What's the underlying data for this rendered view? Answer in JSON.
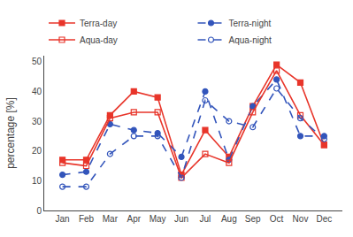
{
  "chart_data": {
    "type": "line",
    "categories": [
      "Jan",
      "Feb",
      "Mar",
      "Apr",
      "May",
      "Jun",
      "Jul",
      "Aug",
      "Sep",
      "Oct",
      "Nov",
      "Dec"
    ],
    "series": [
      {
        "name": "Terra-day",
        "color": "#e8352a",
        "marker": "square",
        "line_style": "solid",
        "values": [
          17,
          17,
          32,
          40,
          38,
          12,
          27,
          18,
          35,
          49,
          43,
          22
        ]
      },
      {
        "name": "Terra-night",
        "color": "#3355bb",
        "marker": "circle",
        "line_style": "dashed",
        "values": [
          12,
          13,
          29,
          27,
          26,
          18,
          40,
          17,
          35,
          44,
          25,
          25
        ]
      },
      {
        "name": "Aqua-day",
        "color": "#e8352a",
        "marker": "square-open",
        "line_style": "solid",
        "values": [
          16,
          15,
          31,
          33,
          33,
          11,
          19,
          16,
          33,
          47,
          32,
          22
        ]
      },
      {
        "name": "Aqua-night",
        "color": "#3355bb",
        "marker": "circle-open",
        "line_style": "dashed",
        "values": [
          8,
          8,
          19,
          25,
          25,
          11,
          37,
          30,
          28,
          41,
          31,
          24
        ]
      }
    ],
    "ylabel": "percentage [%]",
    "ylim": [
      0,
      52
    ],
    "yticks": [
      0,
      10,
      20,
      30,
      40,
      50
    ],
    "legend": "upper left",
    "grid": false
  }
}
